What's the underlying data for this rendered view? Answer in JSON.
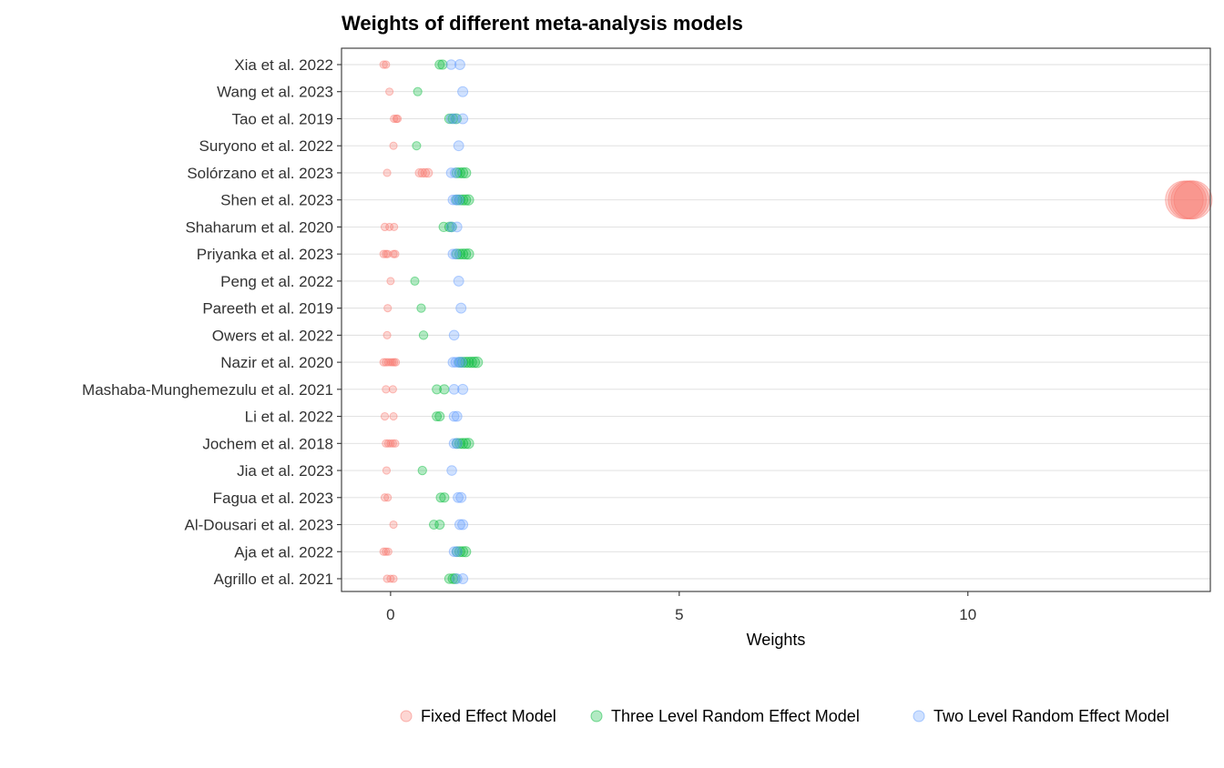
{
  "chart_data": {
    "type": "scatter",
    "title": "Weights of different meta-analysis models",
    "xlabel": "Weights",
    "ylabel": "",
    "xlim": [
      -0.85,
      14.2
    ],
    "xticks": [
      0,
      5,
      10
    ],
    "grid": true,
    "legend_position": "bottom",
    "categories": [
      "Xia et al. 2022",
      "Wang et al. 2023",
      "Tao et al. 2019",
      "Suryono et al. 2022",
      "Solórzano et al. 2023",
      "Shen et al. 2023",
      "Shaharum et al. 2020",
      "Priyanka et al. 2023",
      "Peng et al. 2022",
      "Pareeth et al. 2019",
      "Owers et al. 2022",
      "Nazir et al. 2020",
      "Mashaba-Munghemezulu et al. 2021",
      "Li et al. 2022",
      "Jochem et al. 2018",
      "Jia et al. 2023",
      "Fagua et al. 2023",
      "Al-Dousari et al. 2023",
      "Aja et al. 2022",
      "Agrillo et al. 2021"
    ],
    "series": [
      {
        "name": "Fixed Effect Model",
        "color": "#F8766D",
        "points": [
          {
            "study": "Xia et al. 2022",
            "x": [
              -0.12,
              -0.08
            ]
          },
          {
            "study": "Wang et al. 2023",
            "x": [
              -0.02
            ]
          },
          {
            "study": "Tao et al. 2019",
            "x": [
              0.06,
              0.1,
              0.12
            ]
          },
          {
            "study": "Suryono et al. 2022",
            "x": [
              0.05
            ]
          },
          {
            "study": "Solórzano et al. 2023",
            "x": [
              -0.06,
              0.5,
              0.55,
              0.6,
              0.65
            ]
          },
          {
            "study": "Shen et al. 2023",
            "x": [
              13.75,
              13.8,
              13.85,
              13.9
            ]
          },
          {
            "study": "Shaharum et al. 2020",
            "x": [
              -0.1,
              -0.02,
              0.06
            ]
          },
          {
            "study": "Priyanka et al. 2023",
            "x": [
              -0.12,
              -0.08,
              -0.05,
              0.05,
              0.08
            ]
          },
          {
            "study": "Peng et al. 2022",
            "x": [
              0.0
            ]
          },
          {
            "study": "Pareeth et al. 2019",
            "x": [
              -0.05
            ]
          },
          {
            "study": "Owers et al. 2022",
            "x": [
              -0.06
            ]
          },
          {
            "study": "Nazir et al. 2020",
            "x": [
              -0.12,
              -0.08,
              -0.04,
              0.0,
              0.03,
              0.06,
              0.09
            ]
          },
          {
            "study": "Mashaba-Munghemezulu et al. 2021",
            "x": [
              -0.08,
              0.04
            ]
          },
          {
            "study": "Li et al. 2022",
            "x": [
              -0.1,
              0.05
            ]
          },
          {
            "study": "Jochem et al. 2018",
            "x": [
              -0.08,
              -0.04,
              0.0,
              0.04,
              0.08
            ]
          },
          {
            "study": "Jia et al. 2023",
            "x": [
              -0.07
            ]
          },
          {
            "study": "Fagua et al. 2023",
            "x": [
              -0.1,
              -0.05
            ]
          },
          {
            "study": "Al-Dousari et al. 2023",
            "x": [
              0.05
            ]
          },
          {
            "study": "Aja et al. 2022",
            "x": [
              -0.12,
              -0.08,
              -0.04
            ]
          },
          {
            "study": "Agrillo et al. 2021",
            "x": [
              -0.06,
              0.0,
              0.05
            ]
          }
        ]
      },
      {
        "name": "Three Level Random Effect Model",
        "color": "#00BA38",
        "points": [
          {
            "study": "Xia et al. 2022",
            "x": [
              0.85,
              0.9
            ]
          },
          {
            "study": "Wang et al. 2023",
            "x": [
              0.47
            ]
          },
          {
            "study": "Tao et al. 2019",
            "x": [
              1.02,
              1.08,
              1.14
            ]
          },
          {
            "study": "Suryono et al. 2022",
            "x": [
              0.45
            ]
          },
          {
            "study": "Solórzano et al. 2023",
            "x": [
              1.15,
              1.2,
              1.25,
              1.3
            ]
          },
          {
            "study": "Shen et al. 2023",
            "x": [
              1.15,
              1.2,
              1.25,
              1.3,
              1.35
            ]
          },
          {
            "study": "Shaharum et al. 2020",
            "x": [
              0.92,
              1.02,
              1.06
            ]
          },
          {
            "study": "Priyanka et al. 2023",
            "x": [
              1.15,
              1.2,
              1.25,
              1.3,
              1.35
            ]
          },
          {
            "study": "Peng et al. 2022",
            "x": [
              0.42
            ]
          },
          {
            "study": "Pareeth et al. 2019",
            "x": [
              0.53
            ]
          },
          {
            "study": "Owers et al. 2022",
            "x": [
              0.57
            ]
          },
          {
            "study": "Nazir et al. 2020",
            "x": [
              1.2,
              1.25,
              1.3,
              1.35,
              1.4,
              1.45,
              1.5
            ]
          },
          {
            "study": "Mashaba-Munghemezulu et al. 2021",
            "x": [
              0.8,
              0.93
            ]
          },
          {
            "study": "Li et al. 2022",
            "x": [
              0.8,
              0.85
            ]
          },
          {
            "study": "Jochem et al. 2018",
            "x": [
              1.15,
              1.2,
              1.25,
              1.3,
              1.35
            ]
          },
          {
            "study": "Jia et al. 2023",
            "x": [
              0.55
            ]
          },
          {
            "study": "Fagua et al. 2023",
            "x": [
              0.87,
              0.93
            ]
          },
          {
            "study": "Al-Dousari et al. 2023",
            "x": [
              0.75,
              0.85
            ]
          },
          {
            "study": "Aja et al. 2022",
            "x": [
              1.15,
              1.2,
              1.25,
              1.3
            ]
          },
          {
            "study": "Agrillo et al. 2021",
            "x": [
              1.02,
              1.08,
              1.12
            ]
          }
        ]
      },
      {
        "name": "Two Level Random Effect Model",
        "color": "#619CFF",
        "points": [
          {
            "study": "Xia et al. 2022",
            "x": [
              1.05,
              1.2
            ]
          },
          {
            "study": "Wang et al. 2023",
            "x": [
              1.25
            ]
          },
          {
            "study": "Tao et al. 2019",
            "x": [
              1.05,
              1.12,
              1.25
            ]
          },
          {
            "study": "Suryono et al. 2022",
            "x": [
              1.18
            ]
          },
          {
            "study": "Solórzano et al. 2023",
            "x": [
              1.05,
              1.12
            ]
          },
          {
            "study": "Shen et al. 2023",
            "x": [
              1.08,
              1.13,
              1.18
            ]
          },
          {
            "study": "Shaharum et al. 2020",
            "x": [
              1.05,
              1.15
            ]
          },
          {
            "study": "Priyanka et al. 2023",
            "x": [
              1.08,
              1.13
            ]
          },
          {
            "study": "Peng et al. 2022",
            "x": [
              1.18
            ]
          },
          {
            "study": "Pareeth et al. 2019",
            "x": [
              1.22
            ]
          },
          {
            "study": "Owers et al. 2022",
            "x": [
              1.1
            ]
          },
          {
            "study": "Nazir et al. 2020",
            "x": [
              1.08,
              1.13,
              1.18,
              1.23
            ]
          },
          {
            "study": "Mashaba-Munghemezulu et al. 2021",
            "x": [
              1.1,
              1.25
            ]
          },
          {
            "study": "Li et al. 2022",
            "x": [
              1.1,
              1.15
            ]
          },
          {
            "study": "Jochem et al. 2018",
            "x": [
              1.1,
              1.15
            ]
          },
          {
            "study": "Jia et al. 2023",
            "x": [
              1.06
            ]
          },
          {
            "study": "Fagua et al. 2023",
            "x": [
              1.17,
              1.22
            ]
          },
          {
            "study": "Al-Dousari et al. 2023",
            "x": [
              1.2,
              1.25
            ]
          },
          {
            "study": "Aja et al. 2022",
            "x": [
              1.1,
              1.15
            ]
          },
          {
            "study": "Agrillo et al. 2021",
            "x": [
              1.15,
              1.25
            ]
          }
        ]
      }
    ]
  }
}
